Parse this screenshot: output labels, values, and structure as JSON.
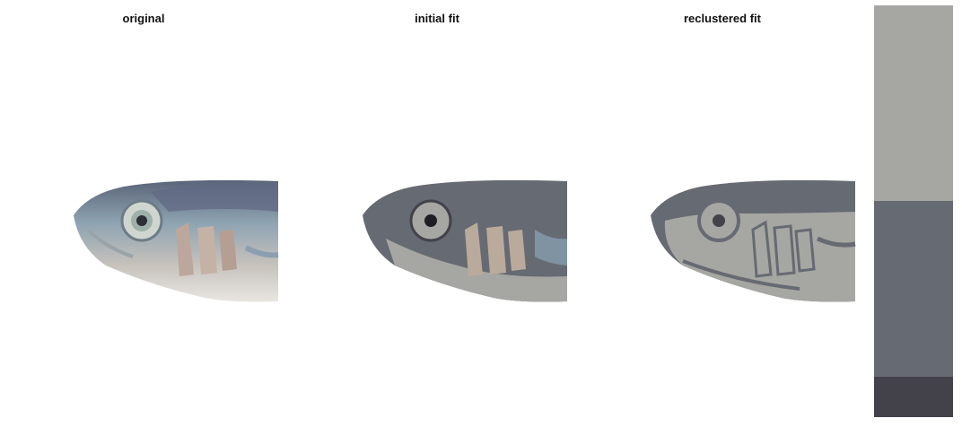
{
  "panels": [
    {
      "title": "original"
    },
    {
      "title": "initial fit"
    },
    {
      "title": "reclustered fit"
    }
  ],
  "palette": {
    "swatches": [
      {
        "color": "#a6a7a2",
        "fraction": 0.475
      },
      {
        "color": "#666a72",
        "fraction": 0.428
      },
      {
        "color": "#43414a",
        "fraction": 0.097
      }
    ]
  },
  "colors": {
    "light": "#a6a7a2",
    "mid": "#666a72",
    "dark": "#43414a",
    "fish_blue": "#7f93a3",
    "fish_tan": "#b9aa9c"
  }
}
